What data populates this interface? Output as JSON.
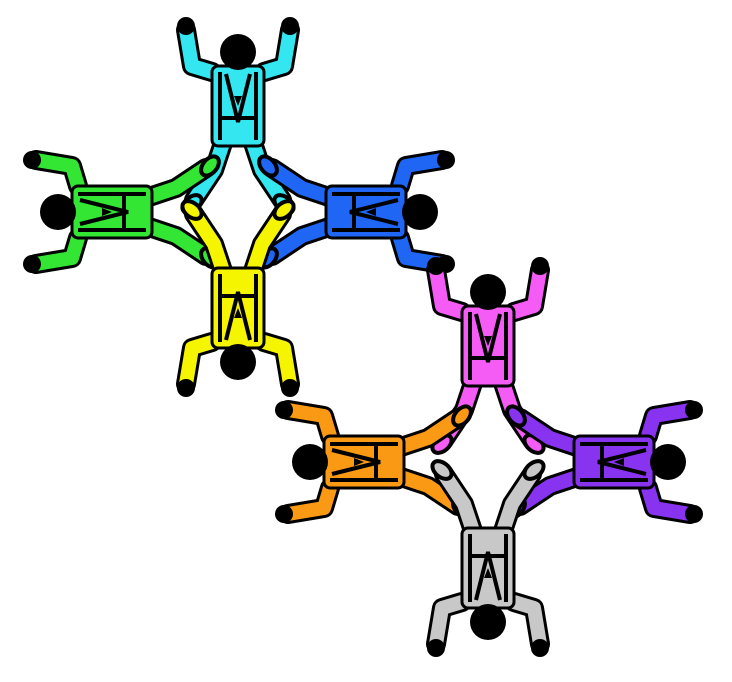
{
  "formation": {
    "jumpers": [
      {
        "id": "cyan",
        "color": "#33e6f0"
      },
      {
        "id": "green",
        "color": "#33e633"
      },
      {
        "id": "blue",
        "color": "#1f66f5"
      },
      {
        "id": "yellow",
        "color": "#f5f500"
      },
      {
        "id": "magenta",
        "color": "#f55cf5"
      },
      {
        "id": "orange",
        "color": "#fa9a14"
      },
      {
        "id": "purple",
        "color": "#8833f0"
      },
      {
        "id": "gray",
        "color": "#c8c8c8"
      }
    ]
  }
}
